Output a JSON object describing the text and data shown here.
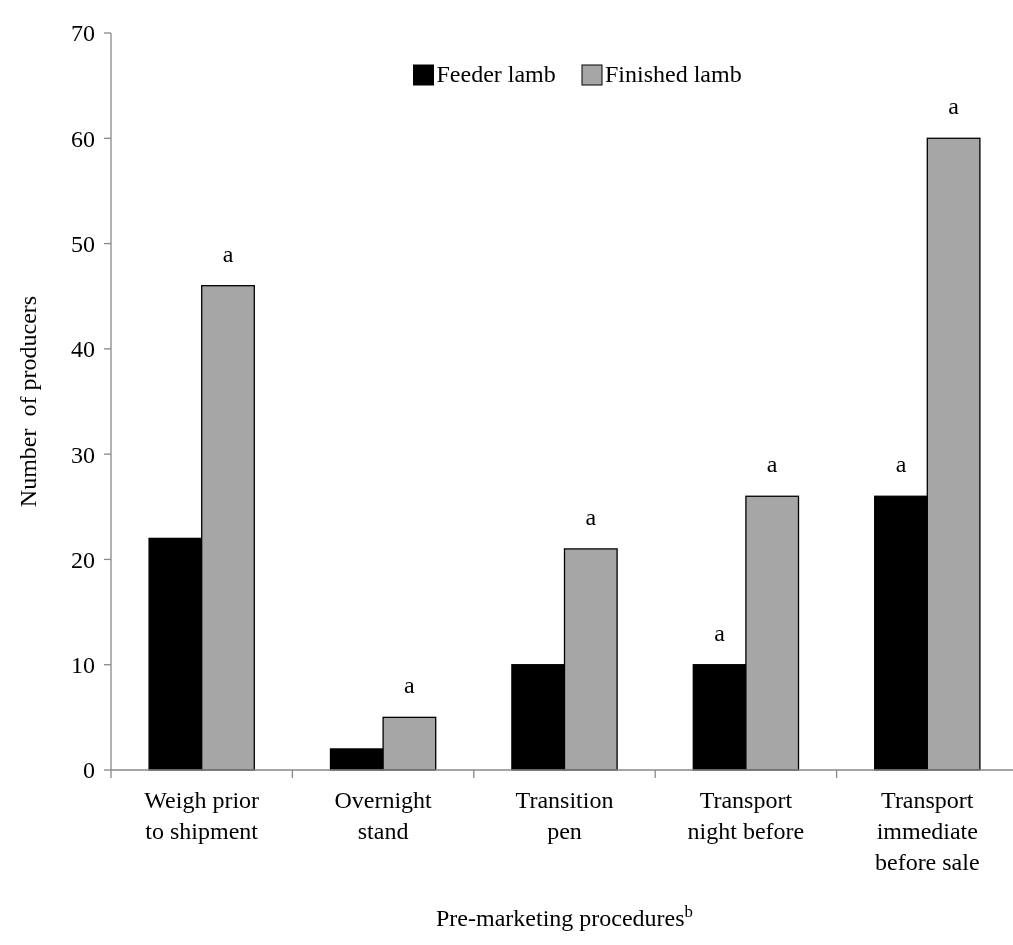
{
  "chart_data": {
    "type": "bar",
    "xlabel": "Pre-marketing procedures$^{b}$",
    "ylabel": "Number  of producers",
    "categories": [
      "Weigh prior to shipment",
      "Overnight stand",
      "Transition pen",
      "Transport night before",
      "Transport immediate before sale"
    ],
    "series": [
      {
        "name": "Feeder lamb",
        "color": "#000000",
        "values": [
          22,
          2,
          10,
          10,
          26
        ]
      },
      {
        "name": "Finished lamb",
        "color": "#a6a6a6",
        "values": [
          46,
          5,
          21,
          26,
          60
        ]
      }
    ],
    "ylim": [
      0,
      70
    ],
    "yticks": [
      0,
      10,
      20,
      30,
      40,
      50,
      60,
      70
    ],
    "legend": "top",
    "annotations": [
      {
        "text": "a",
        "x": "Weigh prior to shipment",
        "y": 46
      },
      {
        "text": "a",
        "x": "Overnight stand",
        "y": 5
      },
      {
        "text": "a",
        "x": "Transition pen",
        "y": 21
      },
      {
        "text": "a",
        "x": "Transport night before",
        "y": 10
      },
      {
        "text": "a",
        "x": "Transport night before",
        "y": 26
      },
      {
        "text": "a",
        "x": "Transport immediate before sale",
        "y": 26
      },
      {
        "text": "a",
        "x": "Transport immediate before sale",
        "y": 60
      }
    ]
  }
}
